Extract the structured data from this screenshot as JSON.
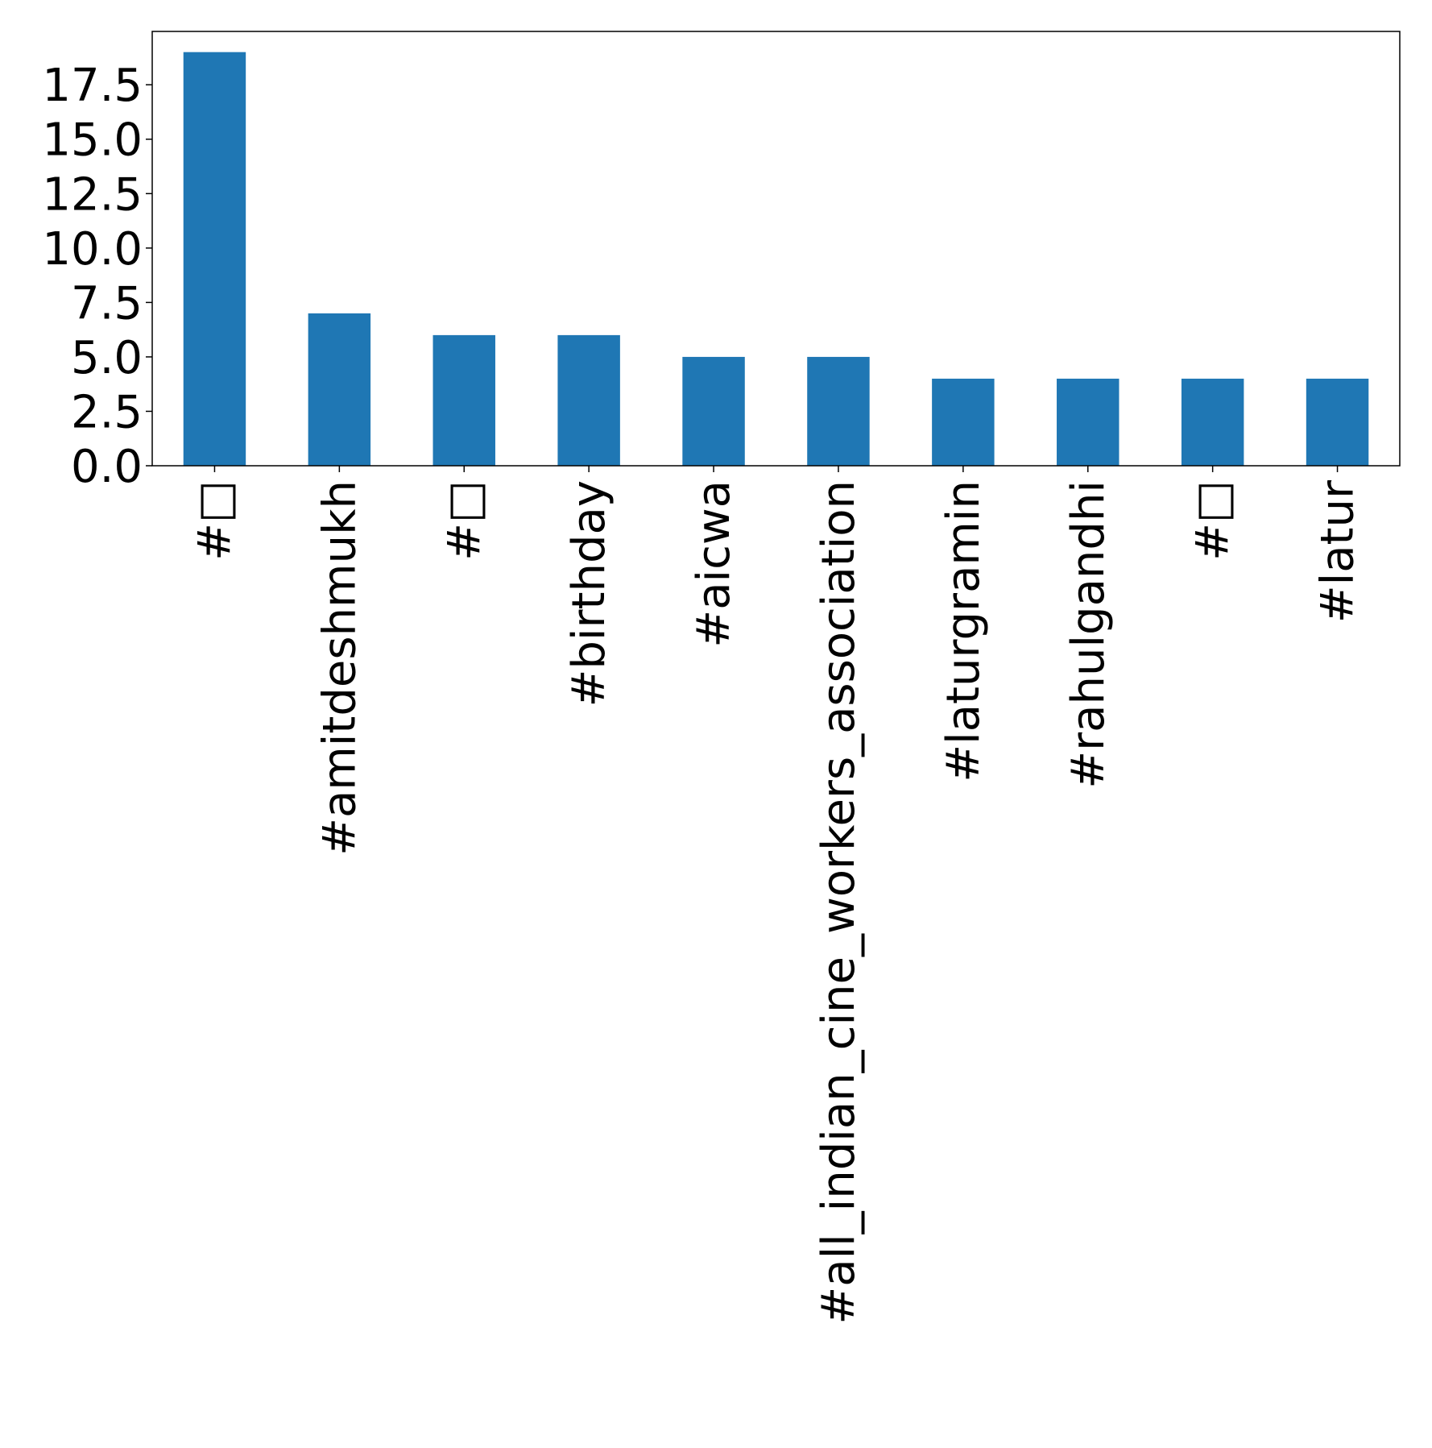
{
  "chart_data": {
    "type": "bar",
    "categories": [
      "#□",
      "#amitdeshmukh",
      "#□",
      "#birthday",
      "#aicwa",
      "#all_indian_cine_workers_association",
      "#laturgramin",
      "#rahulgandhi",
      "#□",
      "#latur"
    ],
    "values": [
      19,
      7,
      6,
      6,
      5,
      5,
      4,
      4,
      4,
      4
    ],
    "ylim": [
      0,
      19.95
    ],
    "yticks": [
      0,
      2.5,
      5,
      7.5,
      10,
      12.5,
      15,
      17.5
    ],
    "ytick_labels": [
      "0.0",
      "2.5",
      "5.0",
      "7.5",
      "10.0",
      "12.5",
      "15.0",
      "17.5"
    ],
    "title": "",
    "xlabel": "",
    "ylabel": "",
    "grid": false,
    "bar_color": "#1f77b4"
  }
}
